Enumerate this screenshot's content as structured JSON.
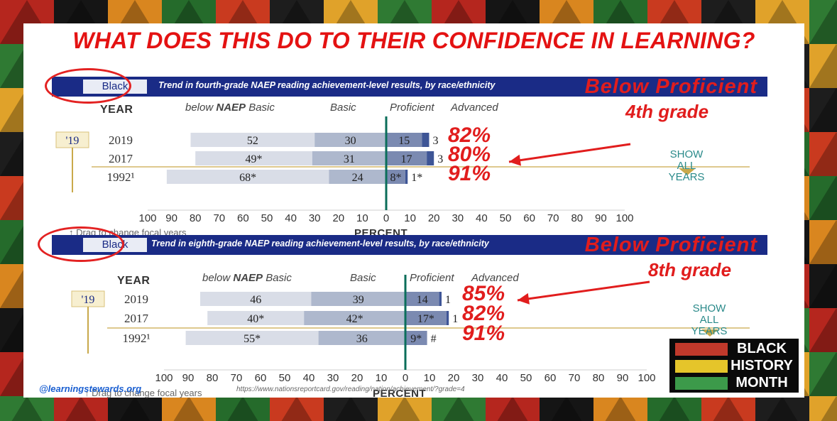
{
  "headline": "WHAT DOES THIS DO TO THEIR CONFIDENCE IN LEARNING?",
  "colors": {
    "basic_below": "#d9dde7",
    "basic": "#aeb8cd",
    "proficient": "#7b8ab1",
    "advanced": "#3e5596",
    "accent_red": "#e11d1d",
    "banner": "#1a2b86"
  },
  "chart_data": [
    {
      "type": "bar",
      "group": "Black",
      "title": "Trend in fourth-grade NAEP reading achievement-level results, by race/ethnicity",
      "annotation_banner": "Below Proficient",
      "grade_label": "4th grade",
      "year_header": "YEAR",
      "column_headers": {
        "below_prefix": "below ",
        "below_naep": "NAEP",
        "below_basic": " Basic",
        "basic": "Basic",
        "proficient": "Proficient",
        "advanced": "Advanced"
      },
      "year_badge": "'19",
      "show_all": [
        "SHOW",
        "ALL",
        "YEARS"
      ],
      "drag_hint": "↑ Drag to change focal years",
      "xlabel": "PERCENT",
      "xticks": [
        "100",
        "90",
        "80",
        "70",
        "60",
        "50",
        "40",
        "30",
        "20",
        "10",
        "0",
        "10",
        "20",
        "30",
        "40",
        "50",
        "60",
        "70",
        "80",
        "90",
        "100"
      ],
      "xlim": [
        -100,
        100
      ],
      "rows": [
        {
          "year": "2019",
          "below_basic": 52,
          "basic": 30,
          "proficient": 15,
          "advanced": 3,
          "labels": [
            "52",
            "30",
            "15",
            "3"
          ],
          "below_proficient_label": "82%"
        },
        {
          "year": "2017",
          "below_basic": 49,
          "basic": 31,
          "proficient": 17,
          "advanced": 3,
          "labels": [
            "49*",
            "31",
            "17",
            "3"
          ],
          "below_proficient_label": "80%"
        },
        {
          "year": "1992¹",
          "below_basic": 68,
          "basic": 24,
          "proficient": 8,
          "advanced": 1,
          "labels": [
            "68*",
            "24",
            "8*",
            "1*"
          ],
          "below_proficient_label": "91%"
        }
      ]
    },
    {
      "type": "bar",
      "group": "Black",
      "title": "Trend in eighth-grade NAEP reading achievement-level results, by race/ethnicity",
      "annotation_banner": "Below Proficient",
      "grade_label": "8th grade",
      "year_header": "YEAR",
      "column_headers": {
        "below_prefix": "below ",
        "below_naep": "NAEP",
        "below_basic": " Basic",
        "basic": "Basic",
        "proficient": "Proficient",
        "advanced": "Advanced"
      },
      "year_badge": "'19",
      "show_all": [
        "SHOW",
        "ALL",
        "YEARS"
      ],
      "drag_hint": "↑ Drag to change focal years",
      "xlabel": "PERCENT",
      "xticks": [
        "100",
        "90",
        "80",
        "70",
        "60",
        "50",
        "40",
        "30",
        "20",
        "10",
        "0",
        "10",
        "20",
        "30",
        "40",
        "50",
        "60",
        "70",
        "80",
        "90",
        "100"
      ],
      "xlim": [
        -100,
        100
      ],
      "rows": [
        {
          "year": "2019",
          "below_basic": 46,
          "basic": 39,
          "proficient": 14,
          "advanced": 1,
          "labels": [
            "46",
            "39",
            "14",
            "1"
          ],
          "below_proficient_label": "85%"
        },
        {
          "year": "2017",
          "below_basic": 40,
          "basic": 42,
          "proficient": 17,
          "advanced": 1,
          "labels": [
            "40*",
            "42*",
            "17*",
            "1"
          ],
          "below_proficient_label": "82%"
        },
        {
          "year": "1992¹",
          "below_basic": 55,
          "basic": 36,
          "proficient": 9,
          "advanced": 0,
          "labels": [
            "55*",
            "36",
            "9*",
            "#"
          ],
          "below_proficient_label": "91%"
        }
      ]
    }
  ],
  "footer": {
    "handle": "@learningstewards.org",
    "source": "https://www.nationsreportcard.gov/reading/nation/achievement/?grade=4"
  },
  "badge": {
    "lines": [
      "BLACK",
      "HISTORY",
      "MONTH"
    ],
    "strip_colors": [
      "#c0392b",
      "#e5c52a",
      "#3c9a4a"
    ]
  }
}
